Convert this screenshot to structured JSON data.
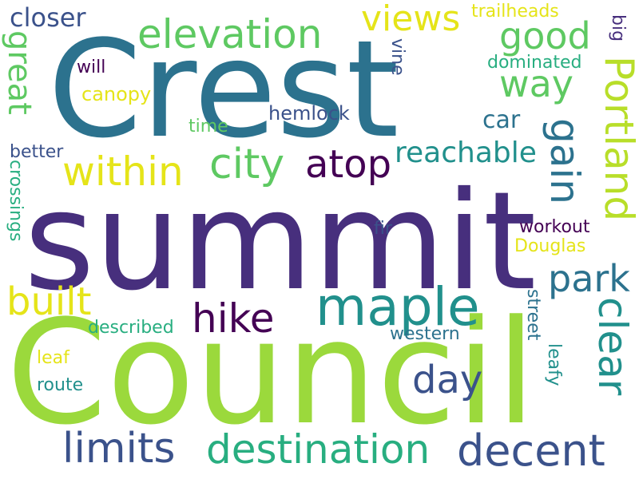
{
  "palette": {
    "dark_purple": "#440154",
    "indigo": "#472f7d",
    "blue": "#3b528b",
    "steel_blue": "#2c728e",
    "teal": "#21908c",
    "sea_green": "#28ae80",
    "green": "#5ec962",
    "lime": "#9bd93c",
    "yellow": "#e5e419"
  },
  "words": {
    "summit": "summit",
    "council": "Council",
    "crest": "Crest",
    "maple": "maple",
    "portland": "Portland",
    "elevation": "elevation",
    "within": "within",
    "city": "city",
    "atop": "atop",
    "reachable": "reachable",
    "views": "views",
    "good": "good",
    "way": "way",
    "gain": "gain",
    "park": "park",
    "clear": "clear",
    "hike": "hike",
    "built": "built",
    "great": "great",
    "day": "day",
    "limits": "limits",
    "destination": "destination",
    "decent": "decent",
    "closer": "closer",
    "trailheads": "trailheads",
    "big": "big",
    "dominated": "dominated",
    "vine": "vine",
    "will": "will",
    "canopy": "canopy",
    "hemlock": "hemlock",
    "car": "car",
    "time": "time",
    "better": "better",
    "crossings": "crossings",
    "fir": "fir",
    "workout": "workout",
    "douglas": "Douglas",
    "street": "street",
    "leafy": "leafy",
    "described": "described",
    "western": "western",
    "leaf": "leaf",
    "route": "route"
  }
}
